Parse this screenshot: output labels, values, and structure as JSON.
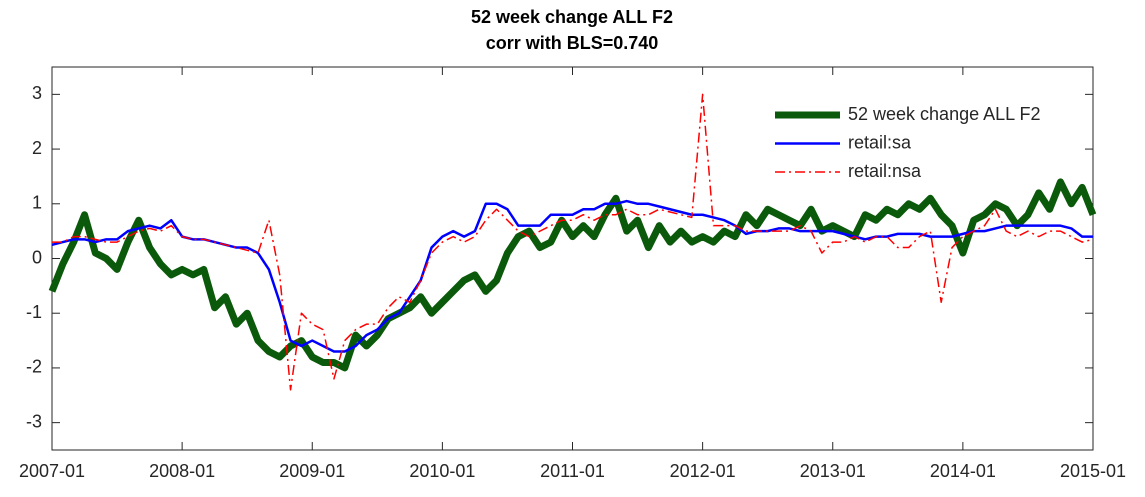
{
  "chart_data": {
    "type": "line",
    "title": "52 week change ALL F2",
    "subtitle": "corr with BLS=0.740",
    "x": [
      "2007-01",
      "2007-02",
      "2007-03",
      "2007-04",
      "2007-05",
      "2007-06",
      "2007-07",
      "2007-08",
      "2007-09",
      "2007-10",
      "2007-11",
      "2007-12",
      "2008-01",
      "2008-02",
      "2008-03",
      "2008-04",
      "2008-05",
      "2008-06",
      "2008-07",
      "2008-08",
      "2008-09",
      "2008-10",
      "2008-11",
      "2008-12",
      "2009-01",
      "2009-02",
      "2009-03",
      "2009-04",
      "2009-05",
      "2009-06",
      "2009-07",
      "2009-08",
      "2009-09",
      "2009-10",
      "2009-11",
      "2009-12",
      "2010-01",
      "2010-02",
      "2010-03",
      "2010-04",
      "2010-05",
      "2010-06",
      "2010-07",
      "2010-08",
      "2010-09",
      "2010-10",
      "2010-11",
      "2010-12",
      "2011-01",
      "2011-02",
      "2011-03",
      "2011-04",
      "2011-05",
      "2011-06",
      "2011-07",
      "2011-08",
      "2011-09",
      "2011-10",
      "2011-11",
      "2011-12",
      "2012-01",
      "2012-02",
      "2012-03",
      "2012-04",
      "2012-05",
      "2012-06",
      "2012-07",
      "2012-08",
      "2012-09",
      "2012-10",
      "2012-11",
      "2012-12",
      "2013-01",
      "2013-02",
      "2013-03",
      "2013-04",
      "2013-05",
      "2013-06",
      "2013-07",
      "2013-08",
      "2013-09",
      "2013-10",
      "2013-11",
      "2013-12",
      "2014-01",
      "2014-02",
      "2014-03",
      "2014-04",
      "2014-05",
      "2014-06",
      "2014-07",
      "2014-08",
      "2014-09",
      "2014-10",
      "2014-11",
      "2014-12",
      "2015-01"
    ],
    "series": [
      {
        "name": "52 week change ALL F2",
        "color": "#0b5a0b",
        "width": 7,
        "style": "solid",
        "values": [
          -0.6,
          -0.1,
          0.3,
          0.8,
          0.1,
          0.0,
          -0.2,
          0.3,
          0.7,
          0.2,
          -0.1,
          -0.3,
          -0.2,
          -0.3,
          -0.2,
          -0.9,
          -0.7,
          -1.2,
          -1.0,
          -1.5,
          -1.7,
          -1.8,
          -1.6,
          -1.5,
          -1.8,
          -1.9,
          -1.9,
          -2.0,
          -1.4,
          -1.6,
          -1.4,
          -1.1,
          -1.0,
          -0.9,
          -0.7,
          -1.0,
          -0.8,
          -0.6,
          -0.4,
          -0.3,
          -0.6,
          -0.4,
          0.1,
          0.4,
          0.5,
          0.2,
          0.3,
          0.7,
          0.4,
          0.6,
          0.4,
          0.8,
          1.1,
          0.5,
          0.7,
          0.2,
          0.6,
          0.3,
          0.5,
          0.3,
          0.4,
          0.3,
          0.5,
          0.4,
          0.8,
          0.6,
          0.9,
          0.8,
          0.7,
          0.6,
          0.9,
          0.5,
          0.6,
          0.5,
          0.4,
          0.8,
          0.7,
          0.9,
          0.8,
          1.0,
          0.9,
          1.1,
          0.8,
          0.6,
          0.1,
          0.7,
          0.8,
          1.0,
          0.9,
          0.6,
          0.8,
          1.2,
          0.9,
          1.4,
          1.0,
          1.3,
          0.8
        ]
      },
      {
        "name": "retail:sa",
        "color": "#0000ff",
        "width": 2.5,
        "style": "solid",
        "values": [
          0.25,
          0.3,
          0.35,
          0.35,
          0.3,
          0.35,
          0.35,
          0.5,
          0.55,
          0.6,
          0.55,
          0.7,
          0.4,
          0.35,
          0.35,
          0.3,
          0.25,
          0.2,
          0.2,
          0.1,
          -0.2,
          -0.8,
          -1.5,
          -1.6,
          -1.5,
          -1.6,
          -1.7,
          -1.7,
          -1.6,
          -1.4,
          -1.3,
          -1.1,
          -1.0,
          -0.7,
          -0.4,
          0.2,
          0.4,
          0.5,
          0.4,
          0.5,
          1.0,
          1.0,
          0.9,
          0.6,
          0.6,
          0.6,
          0.8,
          0.8,
          0.8,
          0.9,
          0.9,
          1.0,
          1.0,
          1.05,
          1.0,
          1.0,
          0.95,
          0.9,
          0.85,
          0.8,
          0.8,
          0.75,
          0.7,
          0.6,
          0.45,
          0.5,
          0.5,
          0.55,
          0.55,
          0.5,
          0.5,
          0.5,
          0.5,
          0.45,
          0.4,
          0.35,
          0.4,
          0.4,
          0.45,
          0.45,
          0.45,
          0.4,
          0.4,
          0.4,
          0.45,
          0.5,
          0.5,
          0.55,
          0.6,
          0.6,
          0.6,
          0.6,
          0.6,
          0.6,
          0.55,
          0.4,
          0.4
        ]
      },
      {
        "name": "retail:nsa",
        "color": "#ff0000",
        "width": 1.5,
        "style": "dashdot",
        "values": [
          0.3,
          0.3,
          0.4,
          0.4,
          0.35,
          0.3,
          0.3,
          0.4,
          0.5,
          0.55,
          0.5,
          0.6,
          0.4,
          0.35,
          0.35,
          0.3,
          0.25,
          0.2,
          0.15,
          0.1,
          0.7,
          -0.3,
          -2.4,
          -1.0,
          -1.2,
          -1.3,
          -2.2,
          -1.5,
          -1.3,
          -1.2,
          -1.2,
          -0.9,
          -0.7,
          -0.8,
          -0.4,
          0.1,
          0.3,
          0.4,
          0.3,
          0.4,
          0.7,
          0.9,
          0.7,
          0.5,
          0.4,
          0.5,
          0.6,
          0.7,
          0.7,
          0.8,
          0.7,
          0.8,
          0.8,
          0.9,
          0.8,
          0.8,
          0.9,
          0.85,
          0.8,
          0.75,
          3.0,
          0.6,
          0.6,
          0.6,
          0.5,
          0.5,
          0.5,
          0.5,
          0.5,
          0.6,
          0.5,
          0.1,
          0.3,
          0.3,
          0.4,
          0.3,
          0.4,
          0.4,
          0.2,
          0.2,
          0.4,
          0.5,
          -0.8,
          0.2,
          0.4,
          0.5,
          0.6,
          0.9,
          0.5,
          0.4,
          0.5,
          0.4,
          0.5,
          0.5,
          0.4,
          0.3,
          0.35
        ]
      }
    ],
    "xlim": [
      "2007-01",
      "2015-01"
    ],
    "xticks": [
      "2007-01",
      "2008-01",
      "2009-01",
      "2010-01",
      "2011-01",
      "2012-01",
      "2013-01",
      "2014-01",
      "2015-01"
    ],
    "ylim": [
      -3.5,
      3.5
    ],
    "yticks": [
      -3,
      -2,
      -1,
      0,
      1,
      2,
      3
    ],
    "grid": false,
    "legend": "upper right"
  }
}
